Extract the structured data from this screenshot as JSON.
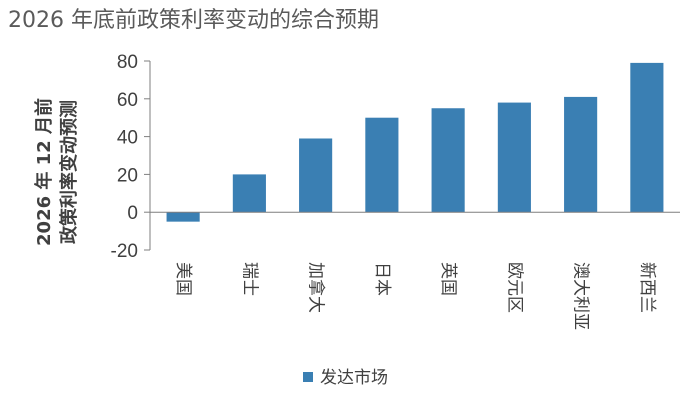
{
  "chart_data": {
    "type": "bar",
    "title": "2026 年底前政策利率变动的综合预期",
    "ylabel_lines": [
      "2026 年 12 月前",
      "政策利率变动预测"
    ],
    "categories": [
      "美国",
      "瑞士",
      "加拿大",
      "日本",
      "英国",
      "欧元区",
      "澳大利亚",
      "新西兰"
    ],
    "series": [
      {
        "name": "发达市场",
        "values": [
          -5,
          20,
          39,
          50,
          55,
          58,
          61,
          79
        ],
        "color": "#3a7fb3"
      }
    ],
    "ylim": [
      -20,
      80
    ],
    "yticks": [
      -20,
      0,
      20,
      40,
      60,
      80
    ],
    "legend": "bottom-center",
    "grid": false
  }
}
